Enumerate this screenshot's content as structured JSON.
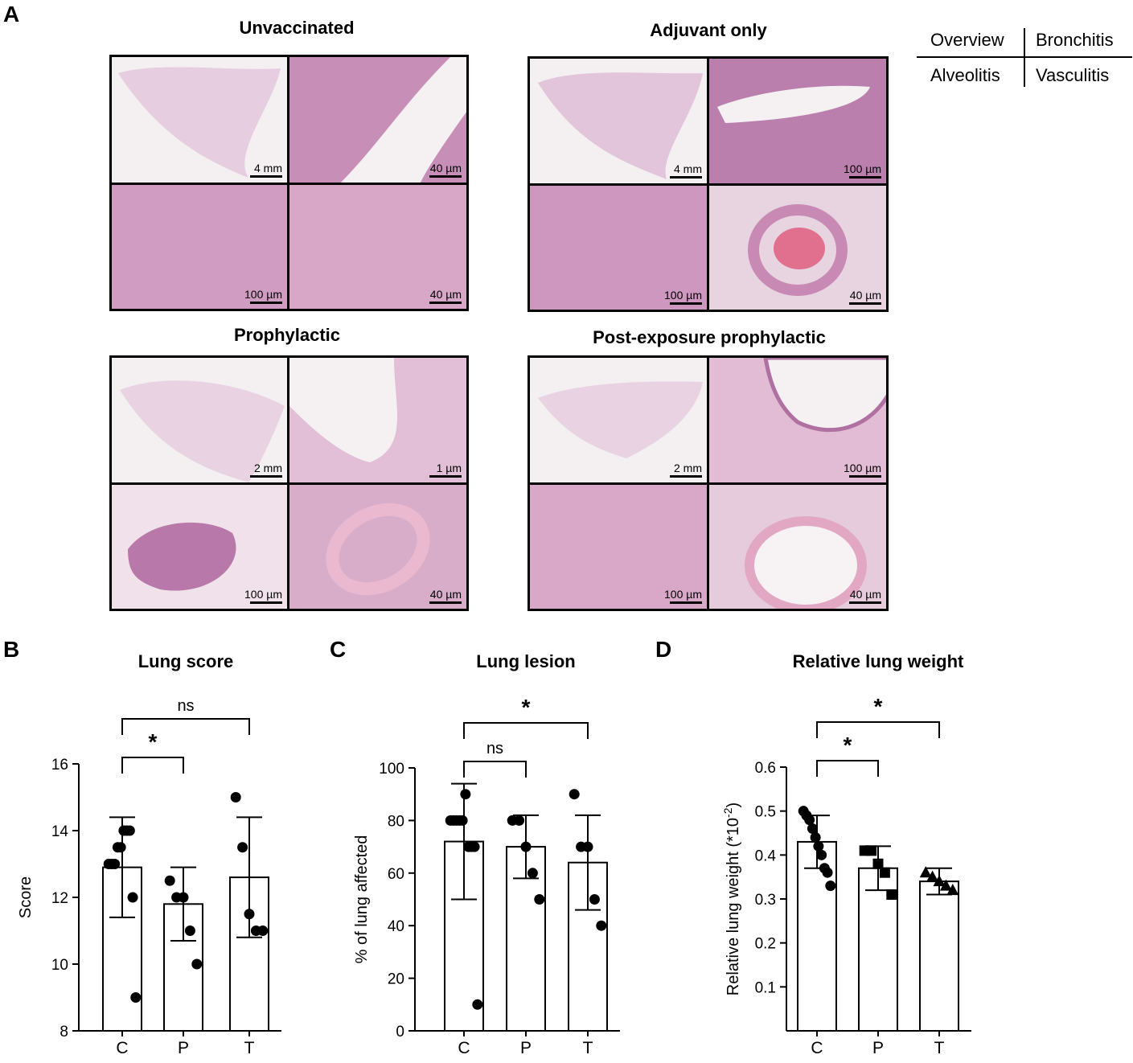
{
  "panel_a": {
    "letter": "A",
    "key": {
      "top_left": "Overview",
      "top_right": "Bronchitis",
      "bottom_left": "Alveolitis",
      "bottom_right": "Vasculitis"
    },
    "groups": [
      {
        "title": "Unvaccinated",
        "scales": [
          "4 mm",
          "40 µm",
          "100 µm",
          "40 µm"
        ]
      },
      {
        "title": "Adjuvant only",
        "scales": [
          "4 mm",
          "100 µm",
          "100 µm",
          "40 µm"
        ]
      },
      {
        "title": "Prophylactic",
        "scales": [
          "2 mm",
          "1 µm",
          "100 µm",
          "40 µm"
        ]
      },
      {
        "title": "Post-exposure prophylactic",
        "scales": [
          "2 mm",
          "100 µm",
          "100 µm",
          "40 µm"
        ]
      }
    ]
  },
  "chart_data": [
    {
      "letter": "B",
      "type": "bar",
      "title": "Lung score",
      "ylabel": "Score",
      "categories": [
        "C",
        "P",
        "T"
      ],
      "ylim": [
        8,
        16
      ],
      "yticks": [
        "8",
        "10",
        "12",
        "14",
        "16"
      ],
      "means": [
        12.9,
        11.8,
        12.6
      ],
      "sd": [
        1.5,
        1.1,
        1.8
      ],
      "points": [
        [
          13,
          13,
          13,
          13.5,
          13.5,
          14,
          14,
          14,
          12,
          9
        ],
        [
          12.5,
          12,
          12,
          11,
          10
        ],
        [
          15,
          13.5,
          11.5,
          11,
          11
        ]
      ],
      "marker": [
        "circle",
        "circle",
        "circle"
      ],
      "comparisons": [
        {
          "from": 0,
          "to": 1,
          "label": "*"
        },
        {
          "from": 0,
          "to": 2,
          "label": "ns"
        }
      ]
    },
    {
      "letter": "C",
      "type": "bar",
      "title": "Lung lesion",
      "ylabel": "% of lung affected",
      "categories": [
        "C",
        "P",
        "T"
      ],
      "ylim": [
        0,
        100
      ],
      "yticks": [
        "0",
        "20",
        "40",
        "60",
        "80",
        "100"
      ],
      "means": [
        72,
        70,
        64
      ],
      "sd": [
        22,
        12,
        18
      ],
      "points": [
        [
          80,
          80,
          80,
          80,
          80,
          90,
          70,
          70,
          70,
          10
        ],
        [
          80,
          80,
          70,
          60,
          50
        ],
        [
          90,
          70,
          70,
          50,
          40
        ]
      ],
      "marker": [
        "circle",
        "circle",
        "circle"
      ],
      "comparisons": [
        {
          "from": 0,
          "to": 1,
          "label": "ns"
        },
        {
          "from": 0,
          "to": 2,
          "label": "*"
        }
      ]
    },
    {
      "letter": "D",
      "type": "bar",
      "title": "Relative lung weight",
      "ylabel": "Relative lung weight (*10",
      "ylabel_sup": "-2",
      "ylabel_end": ")",
      "categories": [
        "C",
        "P",
        "T"
      ],
      "ylim": [
        0,
        0.6
      ],
      "yticks": [
        "0.1",
        "0.2",
        "0.3",
        "0.4",
        "0.5",
        "0.6"
      ],
      "means": [
        0.43,
        0.37,
        0.34
      ],
      "sd": [
        0.06,
        0.05,
        0.03
      ],
      "points": [
        [
          0.5,
          0.49,
          0.48,
          0.46,
          0.44,
          0.42,
          0.4,
          0.37,
          0.36,
          0.33
        ],
        [
          0.41,
          0.41,
          0.38,
          0.36,
          0.31
        ],
        [
          0.36,
          0.35,
          0.34,
          0.33,
          0.32
        ]
      ],
      "marker": [
        "circle",
        "square",
        "triangle"
      ],
      "comparisons": [
        {
          "from": 0,
          "to": 1,
          "label": "*"
        },
        {
          "from": 0,
          "to": 2,
          "label": "*"
        }
      ]
    }
  ]
}
